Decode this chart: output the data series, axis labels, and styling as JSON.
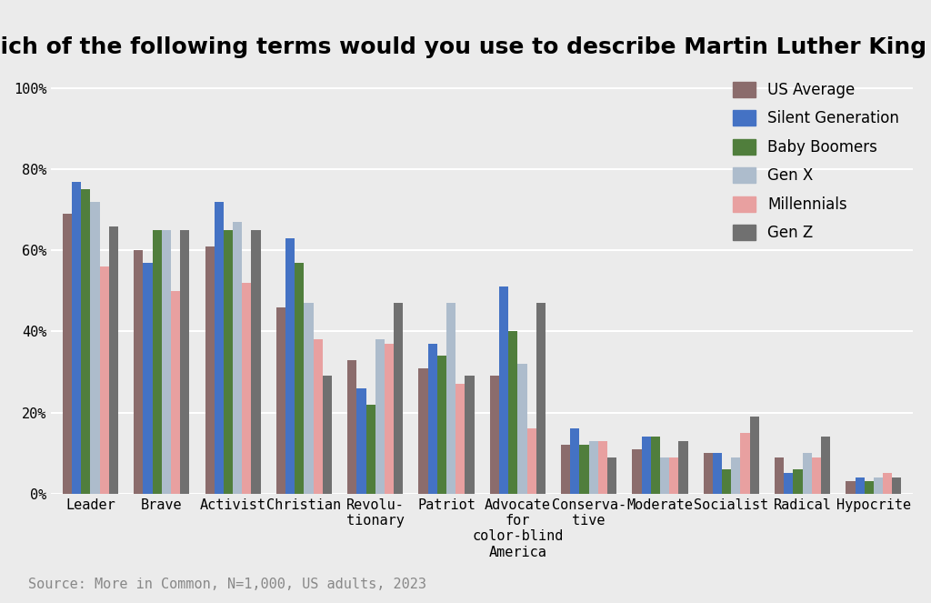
{
  "title": "Which of the following terms would you use to describe Martin Luther King Jr.?",
  "source": "Source: More in Common, N=1,000, US adults, 2023",
  "categories": [
    "Leader",
    "Brave",
    "Activist",
    "Christian",
    "Revolu-\ntionary",
    "Patriot",
    "Advocate\nfor\ncolor-blind\nAmerica",
    "Conserva-\ntive",
    "Moderate",
    "Socialist",
    "Radical",
    "Hypocrite"
  ],
  "series": [
    {
      "name": "US Average",
      "color": "#8B6C6C",
      "values": [
        0.69,
        0.6,
        0.61,
        0.46,
        0.33,
        0.31,
        0.29,
        0.12,
        0.11,
        0.1,
        0.09,
        0.03
      ]
    },
    {
      "name": "Silent Generation",
      "color": "#4472C4",
      "values": [
        0.77,
        0.57,
        0.72,
        0.63,
        0.26,
        0.37,
        0.51,
        0.16,
        0.14,
        0.1,
        0.05,
        0.04
      ]
    },
    {
      "name": "Baby Boomers",
      "color": "#507E3C",
      "values": [
        0.75,
        0.65,
        0.65,
        0.57,
        0.22,
        0.34,
        0.4,
        0.12,
        0.14,
        0.06,
        0.06,
        0.03
      ]
    },
    {
      "name": "Gen X",
      "color": "#ADBCCC",
      "values": [
        0.72,
        0.65,
        0.67,
        0.47,
        0.38,
        0.47,
        0.32,
        0.13,
        0.09,
        0.09,
        0.1,
        0.04
      ]
    },
    {
      "name": "Millennials",
      "color": "#E8A0A0",
      "values": [
        0.56,
        0.5,
        0.52,
        0.38,
        0.37,
        0.27,
        0.16,
        0.13,
        0.09,
        0.15,
        0.09,
        0.05
      ]
    },
    {
      "name": "Gen Z",
      "color": "#707070",
      "values": [
        0.66,
        0.65,
        0.65,
        0.29,
        0.47,
        0.29,
        0.47,
        0.09,
        0.13,
        0.19,
        0.14,
        0.04
      ]
    }
  ],
  "ylim": [
    0,
    1.05
  ],
  "yticks": [
    0,
    0.2,
    0.4,
    0.6,
    0.8,
    1.0
  ],
  "ytick_labels": [
    "0%",
    "20%",
    "40%",
    "60%",
    "80%",
    "100%"
  ],
  "background_color": "#EBEBEB",
  "grid_color": "#FFFFFF",
  "title_fontsize": 18,
  "source_fontsize": 11,
  "legend_fontsize": 12
}
